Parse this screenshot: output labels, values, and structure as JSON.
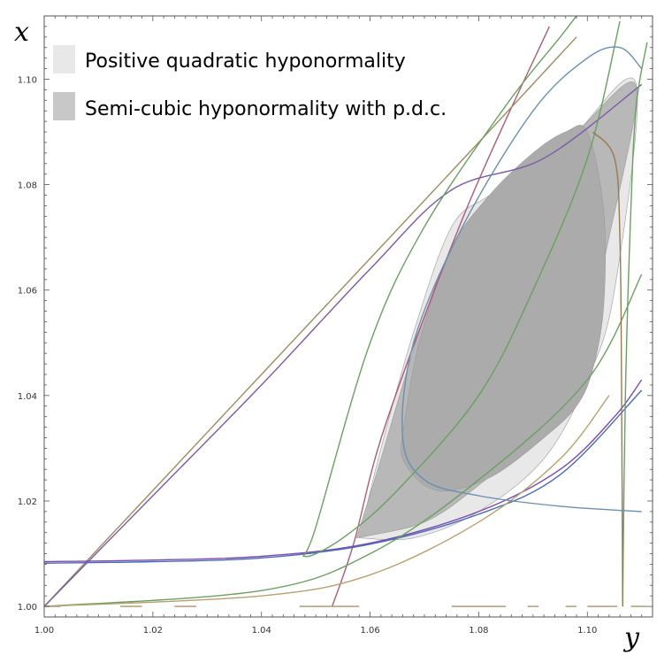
{
  "chart_data": {
    "type": "region_plot",
    "xlabel": "y",
    "ylabel": "x",
    "xlim": [
      1.0,
      1.112
    ],
    "ylim": [
      0.998,
      1.112
    ],
    "xticks": [
      "1.00",
      "1.02",
      "1.04",
      "1.06",
      "1.08",
      "1.10"
    ],
    "yticks": [
      "1.00",
      "1.02",
      "1.04",
      "1.06",
      "1.08",
      "1.10"
    ],
    "legend": [
      {
        "label": "Positive quadratic hyponormality",
        "color": "#e8e8e8"
      },
      {
        "label": "Semi-cubic hyponormality with p.d.c.",
        "color": "#c8c8c8"
      }
    ],
    "regions": [
      {
        "name": "Positive quadratic hyponormality",
        "color": "#e8e8e8",
        "points": [
          [
            1.058,
            1.013
          ],
          [
            1.062,
            1.03
          ],
          [
            1.068,
            1.052
          ],
          [
            1.075,
            1.072
          ],
          [
            1.082,
            1.078
          ],
          [
            1.09,
            1.084
          ],
          [
            1.098,
            1.09
          ],
          [
            1.109,
            1.099
          ],
          [
            1.105,
            1.06
          ],
          [
            1.1,
            1.043
          ],
          [
            1.092,
            1.028
          ],
          [
            1.08,
            1.018
          ],
          [
            1.068,
            1.013
          ]
        ]
      },
      {
        "name": "Semi-cubic hyponormality with p.d.c.",
        "color": "#b8b8b8",
        "points": [
          [
            1.0575,
            1.013
          ],
          [
            1.062,
            1.028
          ],
          [
            1.066,
            1.042
          ],
          [
            1.07,
            1.055
          ],
          [
            1.075,
            1.068
          ],
          [
            1.081,
            1.076
          ],
          [
            1.089,
            1.083
          ],
          [
            1.098,
            1.09
          ],
          [
            1.109,
            1.0985
          ],
          [
            1.103,
            1.065
          ],
          [
            1.1,
            1.047
          ],
          [
            1.09,
            1.032
          ],
          [
            1.08,
            1.023
          ],
          [
            1.07,
            1.016
          ]
        ]
      },
      {
        "name": "inner lobe",
        "color": "#ababab",
        "points": [
          [
            1.066,
            1.033
          ],
          [
            1.069,
            1.05
          ],
          [
            1.075,
            1.068
          ],
          [
            1.082,
            1.078
          ],
          [
            1.09,
            1.086
          ],
          [
            1.096,
            1.09
          ],
          [
            1.1,
            1.09
          ],
          [
            1.103,
            1.075
          ],
          [
            1.103,
            1.057
          ],
          [
            1.101,
            1.045
          ],
          [
            1.098,
            1.038
          ],
          [
            1.092,
            1.032
          ],
          [
            1.083,
            1.025
          ],
          [
            1.075,
            1.022
          ],
          [
            1.07,
            1.023
          ],
          [
            1.066,
            1.028
          ]
        ]
      }
    ],
    "curves": [
      {
        "name": "red line",
        "color": "#b05878",
        "points": [
          [
            1.053,
            1.0
          ],
          [
            1.057,
            1.012
          ],
          [
            1.063,
            1.035
          ],
          [
            1.078,
            1.076
          ],
          [
            1.093,
            1.11
          ]
        ]
      },
      {
        "name": "diagonal olive",
        "color": "#9a8d60",
        "points": [
          [
            1.0,
            1.0
          ],
          [
            1.02,
            1.022
          ],
          [
            1.04,
            1.044
          ],
          [
            1.06,
            1.066
          ],
          [
            1.08,
            1.088
          ],
          [
            1.098,
            1.108
          ]
        ]
      },
      {
        "name": "diagonal purple",
        "color": "#7a5aa8",
        "points": [
          [
            1.0,
            1.0
          ],
          [
            1.02,
            1.021
          ],
          [
            1.04,
            1.042
          ],
          [
            1.06,
            1.064
          ],
          [
            1.075,
            1.079
          ],
          [
            1.092,
            1.085
          ],
          [
            1.11,
            1.099
          ]
        ]
      },
      {
        "name": "bottom purple",
        "color": "#7a4ab0",
        "points": [
          [
            1.0,
            1.0085
          ],
          [
            1.02,
            1.0088
          ],
          [
            1.04,
            1.0095
          ],
          [
            1.06,
            1.012
          ],
          [
            1.08,
            1.018
          ],
          [
            1.095,
            1.026
          ],
          [
            1.105,
            1.036
          ],
          [
            1.11,
            1.043
          ]
        ]
      },
      {
        "name": "bottom blue",
        "color": "#4a6ab8",
        "points": [
          [
            1.0,
            1.0082
          ],
          [
            1.02,
            1.0085
          ],
          [
            1.04,
            1.0092
          ],
          [
            1.06,
            1.0118
          ],
          [
            1.08,
            1.0175
          ],
          [
            1.095,
            1.025
          ],
          [
            1.11,
            1.041
          ]
        ]
      },
      {
        "name": "green loop",
        "color": "#6aa060",
        "points": [
          [
            1.106,
            1.111
          ],
          [
            1.1,
            1.085
          ],
          [
            1.09,
            1.06
          ],
          [
            1.08,
            1.04
          ],
          [
            1.065,
            1.022
          ],
          [
            1.055,
            1.013
          ],
          [
            1.048,
            1.0095
          ],
          [
            1.05,
            1.015
          ],
          [
            1.06,
            1.05
          ],
          [
            1.07,
            1.072
          ],
          [
            1.085,
            1.095
          ],
          [
            1.095,
            1.108
          ],
          [
            1.098,
            1.112
          ]
        ]
      },
      {
        "name": "green right",
        "color": "#6aa060",
        "points": [
          [
            1.0,
            1.0
          ],
          [
            1.04,
            1.003
          ],
          [
            1.06,
            1.01
          ],
          [
            1.08,
            1.024
          ],
          [
            1.1,
            1.043
          ],
          [
            1.11,
            1.063
          ]
        ]
      },
      {
        "name": "green edge",
        "color": "#6aa060",
        "points": [
          [
            1.1065,
            1.0
          ],
          [
            1.107,
            1.04
          ],
          [
            1.108,
            1.075
          ],
          [
            1.109,
            1.095
          ],
          [
            1.111,
            1.107
          ]
        ]
      },
      {
        "name": "olive lower",
        "color": "#b8a070",
        "points": [
          [
            1.0,
            1.0
          ],
          [
            1.04,
            1.002
          ],
          [
            1.06,
            1.006
          ],
          [
            1.08,
            1.016
          ],
          [
            1.095,
            1.028
          ],
          [
            1.104,
            1.04
          ]
        ]
      },
      {
        "name": "olive right",
        "color": "#9a7a50",
        "points": [
          [
            1.1065,
            1.0
          ],
          [
            1.1063,
            1.04
          ],
          [
            1.106,
            1.07
          ],
          [
            1.105,
            1.085
          ],
          [
            1.101,
            1.09
          ]
        ]
      },
      {
        "name": "blue loop",
        "color": "#6b8fb0",
        "points": [
          [
            1.11,
            1.018
          ],
          [
            1.095,
            1.019
          ],
          [
            1.08,
            1.021
          ],
          [
            1.07,
            1.024
          ],
          [
            1.066,
            1.032
          ],
          [
            1.068,
            1.05
          ],
          [
            1.077,
            1.072
          ],
          [
            1.09,
            1.094
          ],
          [
            1.1,
            1.104
          ],
          [
            1.106,
            1.106
          ],
          [
            1.11,
            1.102
          ]
        ]
      }
    ],
    "dashes": {
      "color": "#b8a080",
      "y": 1.0,
      "segments": [
        [
          1.0,
          1.003
        ],
        [
          1.014,
          1.018
        ],
        [
          1.024,
          1.028
        ],
        [
          1.047,
          1.058
        ],
        [
          1.075,
          1.085
        ],
        [
          1.089,
          1.091
        ],
        [
          1.096,
          1.098
        ],
        [
          1.1,
          1.1055
        ],
        [
          1.108,
          1.111
        ]
      ]
    }
  }
}
